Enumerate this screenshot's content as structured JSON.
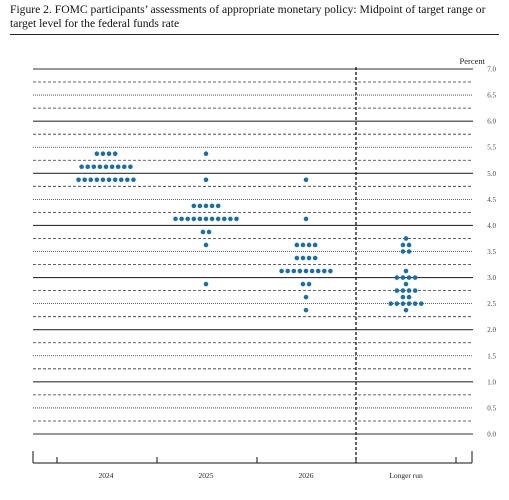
{
  "caption": {
    "text": "Figure 2.  FOMC participants’ assessments of appropriate monetary policy: Midpoint of target range or target level for the federal funds rate"
  },
  "chart_data": {
    "type": "scatter",
    "title": "Figure 2.  FOMC participants’ assessments of appropriate monetary policy: Midpoint of target range or target level for the federal funds rate",
    "ylabel": "Percent",
    "ylim": [
      0,
      7
    ],
    "y_ticks": [
      "7.0",
      "6.5",
      "6.0",
      "5.5",
      "5.0",
      "4.5",
      "4.0",
      "3.5",
      "3.0",
      "2.5",
      "2.0",
      "1.5",
      "1.0",
      "0.5",
      "0.0"
    ],
    "y_tick_values": [
      7.0,
      6.5,
      6.0,
      5.5,
      5.0,
      4.5,
      4.0,
      3.5,
      3.0,
      2.5,
      2.0,
      1.5,
      1.0,
      0.5,
      0.0
    ],
    "categories": [
      "2024",
      "2025",
      "2026",
      "Longer run"
    ],
    "grid": true,
    "dot_color": "#1a6fa8",
    "series": [
      {
        "category": "2024",
        "points": [
          {
            "y": 5.375,
            "count": 4
          },
          {
            "y": 5.125,
            "count": 9
          },
          {
            "y": 4.875,
            "count": 10
          }
        ]
      },
      {
        "category": "2025",
        "points": [
          {
            "y": 5.375,
            "count": 1
          },
          {
            "y": 4.875,
            "count": 1
          },
          {
            "y": 4.375,
            "count": 5
          },
          {
            "y": 4.125,
            "count": 11
          },
          {
            "y": 3.875,
            "count": 2
          },
          {
            "y": 3.625,
            "count": 1
          },
          {
            "y": 2.875,
            "count": 1
          }
        ]
      },
      {
        "category": "2026",
        "points": [
          {
            "y": 4.875,
            "count": 1
          },
          {
            "y": 4.125,
            "count": 1
          },
          {
            "y": 3.625,
            "count": 4
          },
          {
            "y": 3.375,
            "count": 4
          },
          {
            "y": 3.125,
            "count": 9
          },
          {
            "y": 2.875,
            "count": 2
          },
          {
            "y": 2.625,
            "count": 1
          },
          {
            "y": 2.375,
            "count": 1
          }
        ]
      },
      {
        "category": "Longer run",
        "points": [
          {
            "y": 3.75,
            "count": 1
          },
          {
            "y": 3.625,
            "count": 2
          },
          {
            "y": 3.5,
            "count": 2
          },
          {
            "y": 3.125,
            "count": 1
          },
          {
            "y": 3.0,
            "count": 4
          },
          {
            "y": 2.875,
            "count": 1
          },
          {
            "y": 2.75,
            "count": 4
          },
          {
            "y": 2.625,
            "count": 2
          },
          {
            "y": 2.5,
            "count": 6
          },
          {
            "y": 2.375,
            "count": 1
          }
        ]
      }
    ]
  }
}
